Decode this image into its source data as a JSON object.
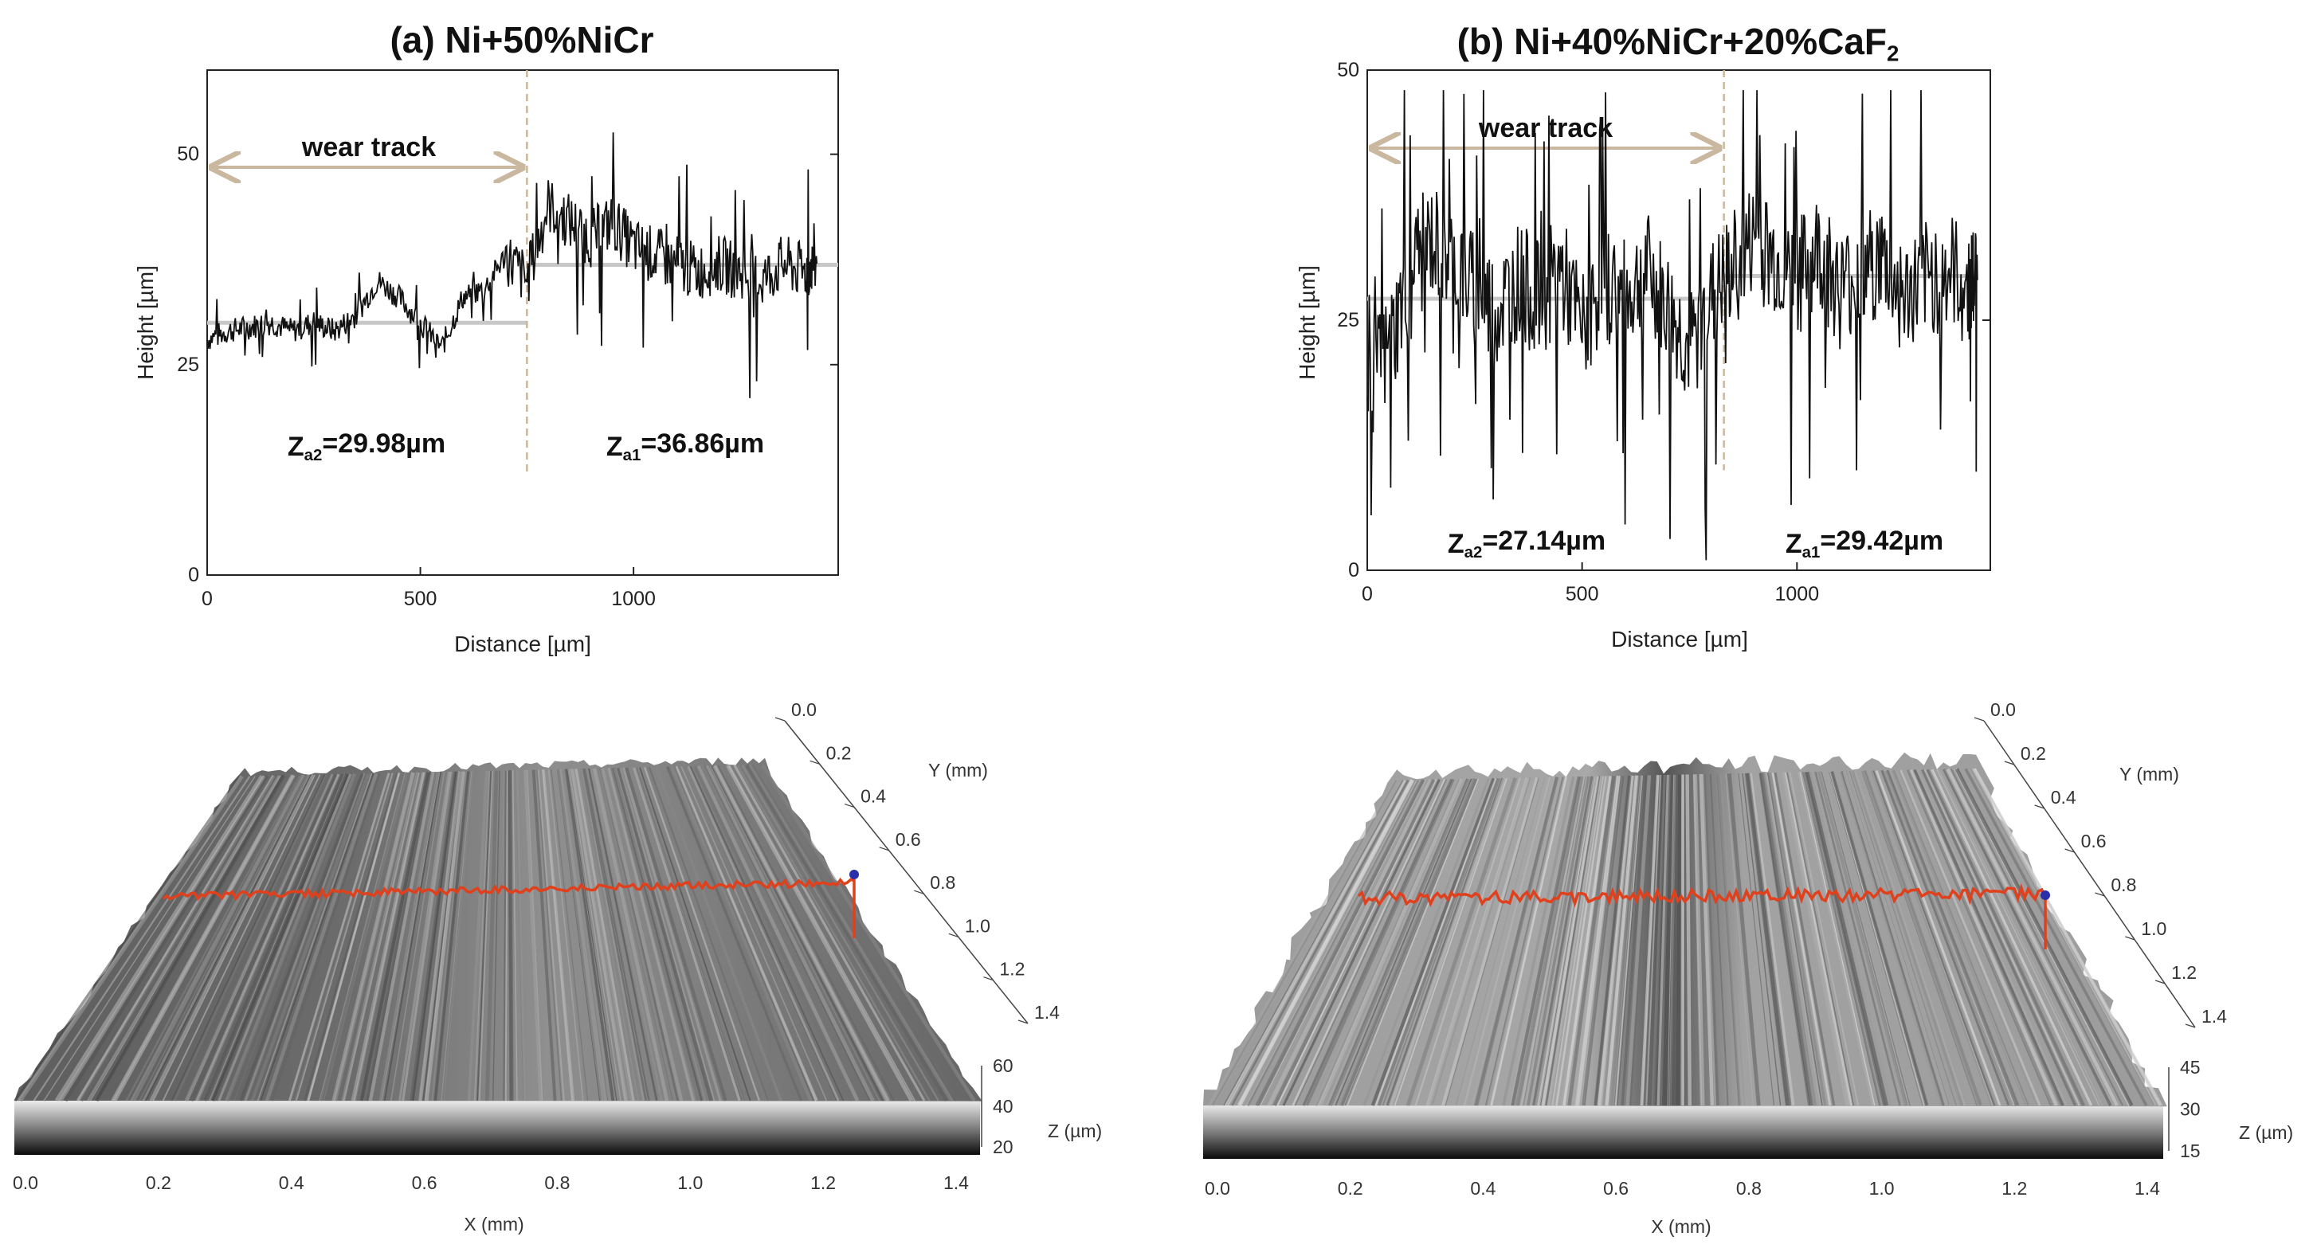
{
  "colors": {
    "profile": "#111111",
    "mean_line": "#c8c8c8",
    "wear_arrow": "#c9b79f",
    "divider": "#c9b79f",
    "trace_3d": "#e0401c",
    "trace_end": "#2a2ea8"
  },
  "chart_data": [
    {
      "type": "line",
      "panel": "a",
      "title": "(a) Ni+50%NiCr",
      "xlabel": "Distance [µm]",
      "ylabel": "Height [µm]",
      "xlim": [
        0,
        1480
      ],
      "ylim": [
        0,
        60
      ],
      "xticks": [
        0,
        500,
        1000
      ],
      "yticks": [
        0,
        25,
        50
      ],
      "wear_track_label": "wear track",
      "wear_track_range": [
        0,
        750
      ],
      "divider_x": 750,
      "series": [
        {
          "name": "profile",
          "x": [
            0,
            50,
            100,
            150,
            200,
            250,
            300,
            350,
            400,
            450,
            500,
            550,
            600,
            650,
            700,
            750,
            800,
            850,
            900,
            950,
            1000,
            1050,
            1100,
            1150,
            1200,
            1250,
            1300,
            1350,
            1400,
            1430
          ],
          "y": [
            28,
            29,
            29.5,
            30,
            29,
            30,
            29,
            31,
            35,
            33,
            30,
            27,
            33,
            34,
            38,
            35,
            44,
            42,
            40,
            42,
            39,
            38,
            37,
            36,
            37,
            36,
            35,
            37,
            36,
            37
          ]
        }
      ],
      "mean_lines": [
        {
          "label": "Za2=29.98µm",
          "x0": 0,
          "x1": 750,
          "y": 29.98
        },
        {
          "label": "Za1=36.86µm",
          "x0": 750,
          "x1": 1480,
          "y": 36.86
        }
      ],
      "annotations": {
        "za2": {
          "main": "Z",
          "sub": "a2",
          "value": "=29.98µm"
        },
        "za1": {
          "main": "Z",
          "sub": "a1",
          "value": "=36.86µm"
        }
      }
    },
    {
      "type": "line",
      "panel": "b",
      "title": "(b) Ni+40%NiCr+20%CaF2",
      "title_parts": {
        "main": "(b) Ni+40%NiCr+20%CaF",
        "sub": "2"
      },
      "xlabel": "Distance [µm]",
      "ylabel": "Height [µm]",
      "xlim": [
        0,
        1450
      ],
      "ylim": [
        0,
        50
      ],
      "xticks": [
        0,
        500,
        1000
      ],
      "yticks": [
        0,
        25,
        50
      ],
      "wear_track_label": "wear track",
      "wear_track_range": [
        0,
        830
      ],
      "divider_x": 830,
      "series": [
        {
          "name": "profile",
          "x": [
            0,
            50,
            100,
            150,
            200,
            250,
            300,
            350,
            400,
            450,
            500,
            550,
            600,
            650,
            700,
            750,
            800,
            850,
            900,
            950,
            1000,
            1050,
            1100,
            1150,
            1200,
            1250,
            1300,
            1350,
            1400,
            1420
          ],
          "y": [
            18,
            22,
            30,
            33,
            31,
            28,
            26,
            29,
            27,
            30,
            24,
            29,
            27,
            30,
            26,
            22,
            27,
            30,
            33,
            31,
            29,
            32,
            28,
            30,
            31,
            27,
            29,
            30,
            28,
            29
          ]
        }
      ],
      "mean_lines": [
        {
          "label": "Za2=27.14µm",
          "x0": 0,
          "x1": 830,
          "y": 27.14
        },
        {
          "label": "Za1=29.42µm",
          "x0": 830,
          "x1": 1420,
          "y": 29.42
        }
      ],
      "annotations": {
        "za2": {
          "main": "Z",
          "sub": "a2",
          "value": "=27.14µm"
        },
        "za1": {
          "main": "Z",
          "sub": "a1",
          "value": "=29.42µm"
        }
      }
    },
    {
      "type": "surface",
      "panel": "a-3d",
      "xlabel": "X (mm)",
      "ylabel": "Y (mm)",
      "zlabel": "Z (µm)",
      "x_ticks": [
        "0.0",
        "0.2",
        "0.4",
        "0.6",
        "0.8",
        "1.0",
        "1.2",
        "1.4"
      ],
      "y_ticks": [
        "0.0",
        "0.2",
        "0.4",
        "0.6",
        "0.8",
        "1.0",
        "1.2",
        "1.4"
      ],
      "z_ticks": [
        "60",
        "40",
        "20"
      ]
    },
    {
      "type": "surface",
      "panel": "b-3d",
      "xlabel": "X (mm)",
      "ylabel": "Y (mm)",
      "zlabel": "Z (µm)",
      "x_ticks": [
        "0.0",
        "0.2",
        "0.4",
        "0.6",
        "0.8",
        "1.0",
        "1.2",
        "1.4"
      ],
      "y_ticks": [
        "0.0",
        "0.2",
        "0.4",
        "0.6",
        "0.8",
        "1.0",
        "1.2",
        "1.4"
      ],
      "z_ticks": [
        "45",
        "30",
        "15"
      ]
    }
  ]
}
